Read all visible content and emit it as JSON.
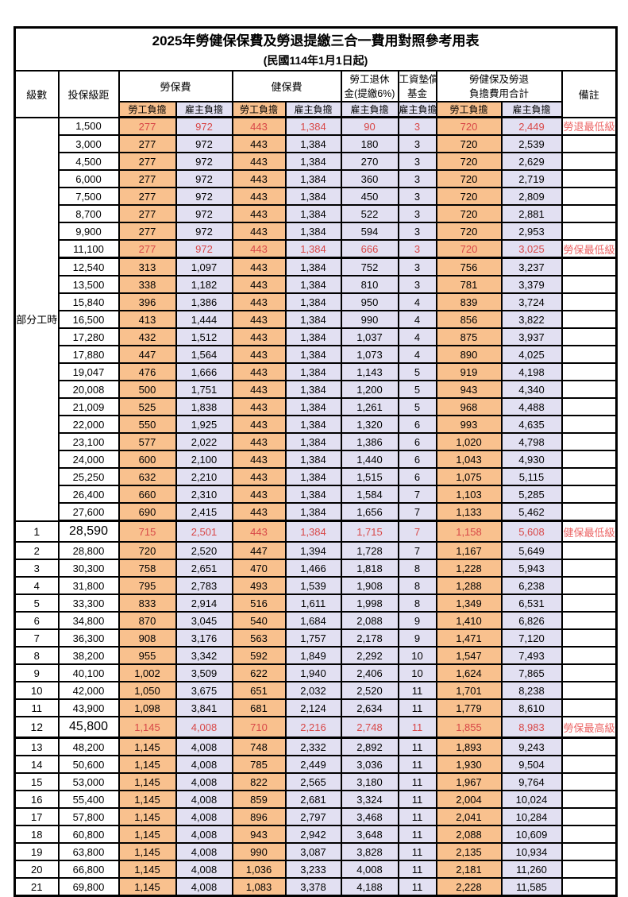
{
  "header": {
    "title": "2025年勞健保保費及勞退提繳三合一費用對照參考用表",
    "subtitle": "(民國114年1月1日起)"
  },
  "columns": {
    "level": "級數",
    "bracket": "投保級距",
    "labor_insurance": "勞保費",
    "health_insurance": "健保費",
    "pension_line1": "勞工退休",
    "pension_line2": "金(提繳6%)",
    "wage_fund_line1": "工資墊償",
    "wage_fund_line2": "基金",
    "total_line1": "勞健保及勞退",
    "total_line2": "負擔費用合計",
    "remark": "備註",
    "employee_share": "勞工負擔",
    "employer_share": "雇主負擔"
  },
  "part_time_label": "部分工時",
  "rows": [
    {
      "level": "",
      "bracket": "1,500",
      "labor_employee": "277",
      "labor_employer": "972",
      "health_employee": "443",
      "health_employer": "1,384",
      "pension_employer": "90",
      "wage_fund_employer": "3",
      "total_employee": "720",
      "total_employer": "2,449",
      "remark": "勞退最低級距",
      "emphasis": true
    },
    {
      "level": "",
      "bracket": "3,000",
      "labor_employee": "277",
      "labor_employer": "972",
      "health_employee": "443",
      "health_employer": "1,384",
      "pension_employer": "180",
      "wage_fund_employer": "3",
      "total_employee": "720",
      "total_employer": "2,539",
      "remark": ""
    },
    {
      "level": "",
      "bracket": "4,500",
      "labor_employee": "277",
      "labor_employer": "972",
      "health_employee": "443",
      "health_employer": "1,384",
      "pension_employer": "270",
      "wage_fund_employer": "3",
      "total_employee": "720",
      "total_employer": "2,629",
      "remark": ""
    },
    {
      "level": "",
      "bracket": "6,000",
      "labor_employee": "277",
      "labor_employer": "972",
      "health_employee": "443",
      "health_employer": "1,384",
      "pension_employer": "360",
      "wage_fund_employer": "3",
      "total_employee": "720",
      "total_employer": "2,719",
      "remark": ""
    },
    {
      "level": "",
      "bracket": "7,500",
      "labor_employee": "277",
      "labor_employer": "972",
      "health_employee": "443",
      "health_employer": "1,384",
      "pension_employer": "450",
      "wage_fund_employer": "3",
      "total_employee": "720",
      "total_employer": "2,809",
      "remark": ""
    },
    {
      "level": "",
      "bracket": "8,700",
      "labor_employee": "277",
      "labor_employer": "972",
      "health_employee": "443",
      "health_employer": "1,384",
      "pension_employer": "522",
      "wage_fund_employer": "3",
      "total_employee": "720",
      "total_employer": "2,881",
      "remark": ""
    },
    {
      "level": "",
      "bracket": "9,900",
      "labor_employee": "277",
      "labor_employer": "972",
      "health_employee": "443",
      "health_employer": "1,384",
      "pension_employer": "594",
      "wage_fund_employer": "3",
      "total_employee": "720",
      "total_employer": "2,953",
      "remark": ""
    },
    {
      "level": "",
      "bracket": "11,100",
      "labor_employee": "277",
      "labor_employer": "972",
      "health_employee": "443",
      "health_employer": "1,384",
      "pension_employer": "666",
      "wage_fund_employer": "3",
      "total_employee": "720",
      "total_employer": "3,025",
      "remark": "勞保最低級距",
      "emphasis": true,
      "group_end": true
    },
    {
      "level": "",
      "bracket": "12,540",
      "labor_employee": "313",
      "labor_employer": "1,097",
      "health_employee": "443",
      "health_employer": "1,384",
      "pension_employer": "752",
      "wage_fund_employer": "3",
      "total_employee": "756",
      "total_employer": "3,237",
      "remark": ""
    },
    {
      "level": "",
      "bracket": "13,500",
      "labor_employee": "338",
      "labor_employer": "1,182",
      "health_employee": "443",
      "health_employer": "1,384",
      "pension_employer": "810",
      "wage_fund_employer": "3",
      "total_employee": "781",
      "total_employer": "3,379",
      "remark": ""
    },
    {
      "level": "",
      "bracket": "15,840",
      "labor_employee": "396",
      "labor_employer": "1,386",
      "health_employee": "443",
      "health_employer": "1,384",
      "pension_employer": "950",
      "wage_fund_employer": "4",
      "total_employee": "839",
      "total_employer": "3,724",
      "remark": ""
    },
    {
      "level": "",
      "bracket": "16,500",
      "labor_employee": "413",
      "labor_employer": "1,444",
      "health_employee": "443",
      "health_employer": "1,384",
      "pension_employer": "990",
      "wage_fund_employer": "4",
      "total_employee": "856",
      "total_employer": "3,822",
      "remark": ""
    },
    {
      "level": "",
      "bracket": "17,280",
      "labor_employee": "432",
      "labor_employer": "1,512",
      "health_employee": "443",
      "health_employer": "1,384",
      "pension_employer": "1,037",
      "wage_fund_employer": "4",
      "total_employee": "875",
      "total_employer": "3,937",
      "remark": ""
    },
    {
      "level": "",
      "bracket": "17,880",
      "labor_employee": "447",
      "labor_employer": "1,564",
      "health_employee": "443",
      "health_employer": "1,384",
      "pension_employer": "1,073",
      "wage_fund_employer": "4",
      "total_employee": "890",
      "total_employer": "4,025",
      "remark": ""
    },
    {
      "level": "",
      "bracket": "19,047",
      "labor_employee": "476",
      "labor_employer": "1,666",
      "health_employee": "443",
      "health_employer": "1,384",
      "pension_employer": "1,143",
      "wage_fund_employer": "5",
      "total_employee": "919",
      "total_employer": "4,198",
      "remark": ""
    },
    {
      "level": "",
      "bracket": "20,008",
      "labor_employee": "500",
      "labor_employer": "1,751",
      "health_employee": "443",
      "health_employer": "1,384",
      "pension_employer": "1,200",
      "wage_fund_employer": "5",
      "total_employee": "943",
      "total_employer": "4,340",
      "remark": ""
    },
    {
      "level": "",
      "bracket": "21,009",
      "labor_employee": "525",
      "labor_employer": "1,838",
      "health_employee": "443",
      "health_employer": "1,384",
      "pension_employer": "1,261",
      "wage_fund_employer": "5",
      "total_employee": "968",
      "total_employer": "4,488",
      "remark": ""
    },
    {
      "level": "",
      "bracket": "22,000",
      "labor_employee": "550",
      "labor_employer": "1,925",
      "health_employee": "443",
      "health_employer": "1,384",
      "pension_employer": "1,320",
      "wage_fund_employer": "6",
      "total_employee": "993",
      "total_employer": "4,635",
      "remark": ""
    },
    {
      "level": "",
      "bracket": "23,100",
      "labor_employee": "577",
      "labor_employer": "2,022",
      "health_employee": "443",
      "health_employer": "1,384",
      "pension_employer": "1,386",
      "wage_fund_employer": "6",
      "total_employee": "1,020",
      "total_employer": "4,798",
      "remark": ""
    },
    {
      "level": "",
      "bracket": "24,000",
      "labor_employee": "600",
      "labor_employer": "2,100",
      "health_employee": "443",
      "health_employer": "1,384",
      "pension_employer": "1,440",
      "wage_fund_employer": "6",
      "total_employee": "1,043",
      "total_employer": "4,930",
      "remark": ""
    },
    {
      "level": "",
      "bracket": "25,250",
      "labor_employee": "632",
      "labor_employer": "2,210",
      "health_employee": "443",
      "health_employer": "1,384",
      "pension_employer": "1,515",
      "wage_fund_employer": "6",
      "total_employee": "1,075",
      "total_employer": "5,115",
      "remark": ""
    },
    {
      "level": "",
      "bracket": "26,400",
      "labor_employee": "660",
      "labor_employer": "2,310",
      "health_employee": "443",
      "health_employer": "1,384",
      "pension_employer": "1,584",
      "wage_fund_employer": "7",
      "total_employee": "1,103",
      "total_employer": "5,285",
      "remark": ""
    },
    {
      "level": "",
      "bracket": "27,600",
      "labor_employee": "690",
      "labor_employer": "2,415",
      "health_employee": "443",
      "health_employer": "1,384",
      "pension_employer": "1,656",
      "wage_fund_employer": "7",
      "total_employee": "1,133",
      "total_employer": "5,462",
      "remark": "",
      "group_end": true
    },
    {
      "level": "1",
      "bracket": "28,590",
      "labor_employee": "715",
      "labor_employer": "2,501",
      "health_employee": "443",
      "health_employer": "1,384",
      "pension_employer": "1,715",
      "wage_fund_employer": "7",
      "total_employee": "1,158",
      "total_employer": "5,608",
      "remark": "健保最低級距",
      "emphasis": true,
      "milestone": true
    },
    {
      "level": "2",
      "bracket": "28,800",
      "labor_employee": "720",
      "labor_employer": "2,520",
      "health_employee": "447",
      "health_employer": "1,394",
      "pension_employer": "1,728",
      "wage_fund_employer": "7",
      "total_employee": "1,167",
      "total_employer": "5,649",
      "remark": ""
    },
    {
      "level": "3",
      "bracket": "30,300",
      "labor_employee": "758",
      "labor_employer": "2,651",
      "health_employee": "470",
      "health_employer": "1,466",
      "pension_employer": "1,818",
      "wage_fund_employer": "8",
      "total_employee": "1,228",
      "total_employer": "5,943",
      "remark": ""
    },
    {
      "level": "4",
      "bracket": "31,800",
      "labor_employee": "795",
      "labor_employer": "2,783",
      "health_employee": "493",
      "health_employer": "1,539",
      "pension_employer": "1,908",
      "wage_fund_employer": "8",
      "total_employee": "1,288",
      "total_employer": "6,238",
      "remark": ""
    },
    {
      "level": "5",
      "bracket": "33,300",
      "labor_employee": "833",
      "labor_employer": "2,914",
      "health_employee": "516",
      "health_employer": "1,611",
      "pension_employer": "1,998",
      "wage_fund_employer": "8",
      "total_employee": "1,349",
      "total_employer": "6,531",
      "remark": ""
    },
    {
      "level": "6",
      "bracket": "34,800",
      "labor_employee": "870",
      "labor_employer": "3,045",
      "health_employee": "540",
      "health_employer": "1,684",
      "pension_employer": "2,088",
      "wage_fund_employer": "9",
      "total_employee": "1,410",
      "total_employer": "6,826",
      "remark": ""
    },
    {
      "level": "7",
      "bracket": "36,300",
      "labor_employee": "908",
      "labor_employer": "3,176",
      "health_employee": "563",
      "health_employer": "1,757",
      "pension_employer": "2,178",
      "wage_fund_employer": "9",
      "total_employee": "1,471",
      "total_employer": "7,120",
      "remark": ""
    },
    {
      "level": "8",
      "bracket": "38,200",
      "labor_employee": "955",
      "labor_employer": "3,342",
      "health_employee": "592",
      "health_employer": "1,849",
      "pension_employer": "2,292",
      "wage_fund_employer": "10",
      "total_employee": "1,547",
      "total_employer": "7,493",
      "remark": ""
    },
    {
      "level": "9",
      "bracket": "40,100",
      "labor_employee": "1,002",
      "labor_employer": "3,509",
      "health_employee": "622",
      "health_employer": "1,940",
      "pension_employer": "2,406",
      "wage_fund_employer": "10",
      "total_employee": "1,624",
      "total_employer": "7,865",
      "remark": ""
    },
    {
      "level": "10",
      "bracket": "42,000",
      "labor_employee": "1,050",
      "labor_employer": "3,675",
      "health_employee": "651",
      "health_employer": "2,032",
      "pension_employer": "2,520",
      "wage_fund_employer": "11",
      "total_employee": "1,701",
      "total_employer": "8,238",
      "remark": ""
    },
    {
      "level": "11",
      "bracket": "43,900",
      "labor_employee": "1,098",
      "labor_employer": "3,841",
      "health_employee": "681",
      "health_employer": "2,124",
      "pension_employer": "2,634",
      "wage_fund_employer": "11",
      "total_employee": "1,779",
      "total_employer": "8,610",
      "remark": ""
    },
    {
      "level": "12",
      "bracket": "45,800",
      "labor_employee": "1,145",
      "labor_employer": "4,008",
      "health_employee": "710",
      "health_employer": "2,216",
      "pension_employer": "2,748",
      "wage_fund_employer": "11",
      "total_employee": "1,855",
      "total_employer": "8,983",
      "remark": "勞保最高級距",
      "emphasis": true,
      "milestone": true,
      "group_end": true
    },
    {
      "level": "13",
      "bracket": "48,200",
      "labor_employee": "1,145",
      "labor_employer": "4,008",
      "health_employee": "748",
      "health_employer": "2,332",
      "pension_employer": "2,892",
      "wage_fund_employer": "11",
      "total_employee": "1,893",
      "total_employer": "9,243",
      "remark": ""
    },
    {
      "level": "14",
      "bracket": "50,600",
      "labor_employee": "1,145",
      "labor_employer": "4,008",
      "health_employee": "785",
      "health_employer": "2,449",
      "pension_employer": "3,036",
      "wage_fund_employer": "11",
      "total_employee": "1,930",
      "total_employer": "9,504",
      "remark": ""
    },
    {
      "level": "15",
      "bracket": "53,000",
      "labor_employee": "1,145",
      "labor_employer": "4,008",
      "health_employee": "822",
      "health_employer": "2,565",
      "pension_employer": "3,180",
      "wage_fund_employer": "11",
      "total_employee": "1,967",
      "total_employer": "9,764",
      "remark": ""
    },
    {
      "level": "16",
      "bracket": "55,400",
      "labor_employee": "1,145",
      "labor_employer": "4,008",
      "health_employee": "859",
      "health_employer": "2,681",
      "pension_employer": "3,324",
      "wage_fund_employer": "11",
      "total_employee": "2,004",
      "total_employer": "10,024",
      "remark": ""
    },
    {
      "level": "17",
      "bracket": "57,800",
      "labor_employee": "1,145",
      "labor_employer": "4,008",
      "health_employee": "896",
      "health_employer": "2,797",
      "pension_employer": "3,468",
      "wage_fund_employer": "11",
      "total_employee": "2,041",
      "total_employer": "10,284",
      "remark": ""
    },
    {
      "level": "18",
      "bracket": "60,800",
      "labor_employee": "1,145",
      "labor_employer": "4,008",
      "health_employee": "943",
      "health_employer": "2,942",
      "pension_employer": "3,648",
      "wage_fund_employer": "11",
      "total_employee": "2,088",
      "total_employer": "10,609",
      "remark": ""
    },
    {
      "level": "19",
      "bracket": "63,800",
      "labor_employee": "1,145",
      "labor_employer": "4,008",
      "health_employee": "990",
      "health_employer": "3,087",
      "pension_employer": "3,828",
      "wage_fund_employer": "11",
      "total_employee": "2,135",
      "total_employer": "10,934",
      "remark": ""
    },
    {
      "level": "20",
      "bracket": "66,800",
      "labor_employee": "1,145",
      "labor_employer": "4,008",
      "health_employee": "1,036",
      "health_employer": "3,233",
      "pension_employer": "4,008",
      "wage_fund_employer": "11",
      "total_employee": "2,181",
      "total_employer": "11,260",
      "remark": ""
    },
    {
      "level": "21",
      "bracket": "69,800",
      "labor_employee": "1,145",
      "labor_employer": "4,008",
      "health_employee": "1,083",
      "health_employer": "3,378",
      "pension_employer": "4,188",
      "wage_fund_employer": "11",
      "total_employee": "2,228",
      "total_employer": "11,585",
      "remark": ""
    }
  ]
}
